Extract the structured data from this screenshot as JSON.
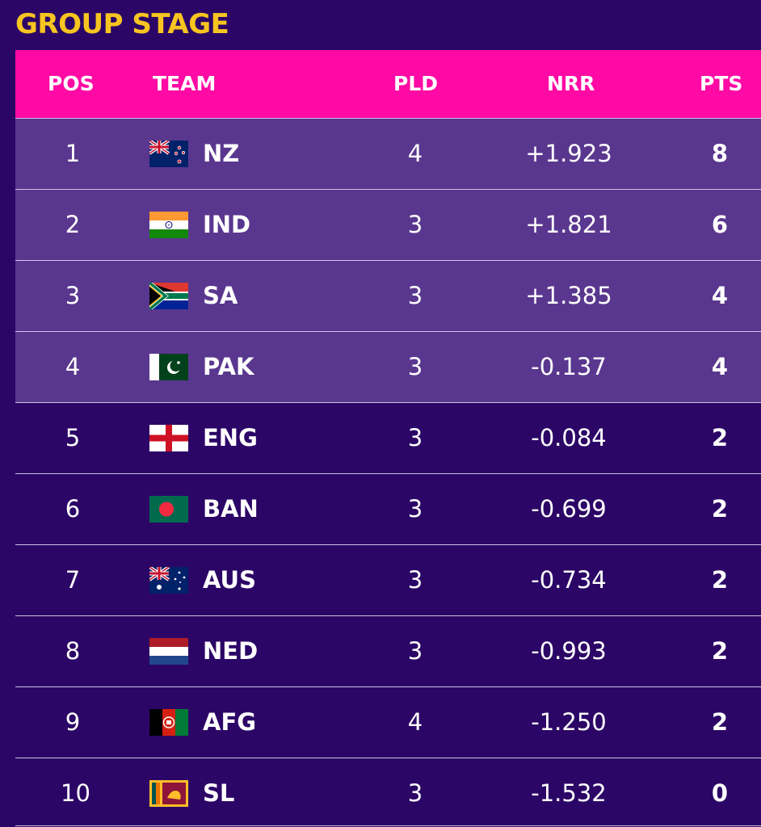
{
  "title": "GROUP STAGE",
  "colors": {
    "background": "#2c0666",
    "header": "#ff0aa4",
    "qualified_row": "#5a378f",
    "title": "#f7c520"
  },
  "columns": {
    "pos": "POS",
    "team": "TEAM",
    "pld": "PLD",
    "nrr": "NRR",
    "pts": "PTS"
  },
  "rows": [
    {
      "pos": "1",
      "flag": "new-zealand-flag-icon",
      "team": "NZ",
      "pld": "4",
      "nrr": "+1.923",
      "pts": "8",
      "highlight": true
    },
    {
      "pos": "2",
      "flag": "india-flag-icon",
      "team": "IND",
      "pld": "3",
      "nrr": "+1.821",
      "pts": "6",
      "highlight": true
    },
    {
      "pos": "3",
      "flag": "south-africa-flag-icon",
      "team": "SA",
      "pld": "3",
      "nrr": "+1.385",
      "pts": "4",
      "highlight": true
    },
    {
      "pos": "4",
      "flag": "pakistan-flag-icon",
      "team": "PAK",
      "pld": "3",
      "nrr": "-0.137",
      "pts": "4",
      "highlight": true
    },
    {
      "pos": "5",
      "flag": "england-flag-icon",
      "team": "ENG",
      "pld": "3",
      "nrr": "-0.084",
      "pts": "2",
      "highlight": false
    },
    {
      "pos": "6",
      "flag": "bangladesh-flag-icon",
      "team": "BAN",
      "pld": "3",
      "nrr": "-0.699",
      "pts": "2",
      "highlight": false
    },
    {
      "pos": "7",
      "flag": "australia-flag-icon",
      "team": "AUS",
      "pld": "3",
      "nrr": "-0.734",
      "pts": "2",
      "highlight": false
    },
    {
      "pos": "8",
      "flag": "netherlands-flag-icon",
      "team": "NED",
      "pld": "3",
      "nrr": "-0.993",
      "pts": "2",
      "highlight": false
    },
    {
      "pos": "9",
      "flag": "afghanistan-flag-icon",
      "team": "AFG",
      "pld": "4",
      "nrr": "-1.250",
      "pts": "2",
      "highlight": false
    },
    {
      "pos": "10",
      "flag": "sri-lanka-flag-icon",
      "team": "SL",
      "pld": "3",
      "nrr": "-1.532",
      "pts": "0",
      "highlight": false
    }
  ]
}
